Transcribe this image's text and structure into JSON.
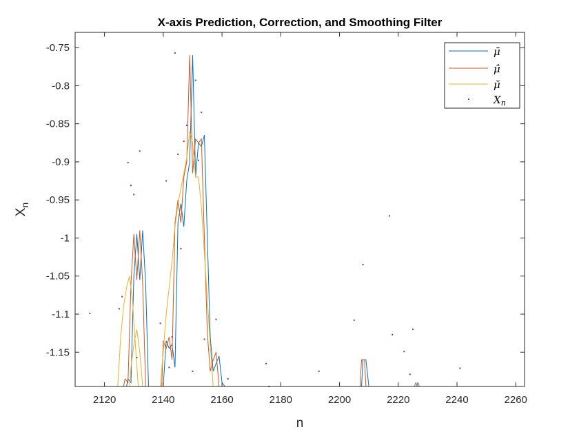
{
  "chart_data": {
    "type": "line",
    "title": "X-axis Prediction, Correction, and Smoothing Filter",
    "xlabel": "n",
    "ylabel": "X_n",
    "ylabel_main": "X",
    "ylabel_sub": "n",
    "xlim": [
      2110,
      2263
    ],
    "ylim": [
      -1.195,
      -0.73
    ],
    "xticks": [
      2120,
      2140,
      2160,
      2180,
      2200,
      2220,
      2240,
      2260
    ],
    "yticks": [
      -0.75,
      -0.8,
      -0.85,
      -0.9,
      -0.95,
      -1,
      -1.05,
      -1.1,
      -1.15
    ],
    "grid": false,
    "legend_position": "top-right",
    "series": [
      {
        "name": "μ̄",
        "style": "line",
        "color": "#0072BD",
        "points": [
          [
            2127.5,
            -1.195
          ],
          [
            2128,
            -1.185
          ],
          [
            2129,
            -1.19
          ],
          [
            2130,
            -1.05
          ],
          [
            2131,
            -0.995
          ],
          [
            2132,
            -1.055
          ],
          [
            2133,
            -0.99
          ],
          [
            2134,
            -1.06
          ],
          [
            2135,
            -1.195
          ],
          [
            2140,
            -1.195
          ],
          [
            2141,
            -1.135
          ],
          [
            2142,
            -1.145
          ],
          [
            2143,
            -1.14
          ],
          [
            2144,
            -1.17
          ],
          [
            2145,
            -0.98
          ],
          [
            2146,
            -0.955
          ],
          [
            2147,
            -0.985
          ],
          [
            2148,
            -0.925
          ],
          [
            2149,
            -0.9
          ],
          [
            2150,
            -0.76
          ],
          [
            2151,
            -0.92
          ],
          [
            2152,
            -0.875
          ],
          [
            2153,
            -0.88
          ],
          [
            2154,
            -0.865
          ],
          [
            2155,
            -1.0
          ],
          [
            2156,
            -1.13
          ],
          [
            2157,
            -1.175
          ],
          [
            2158,
            -1.165
          ],
          [
            2159,
            -1.155
          ],
          [
            2160,
            -1.19
          ],
          [
            2161,
            -1.195
          ],
          [
            2207.5,
            -1.195
          ],
          [
            2208,
            -1.16
          ],
          [
            2209,
            -1.16
          ],
          [
            2210,
            -1.195
          ],
          [
            2226.2,
            -1.195
          ],
          [
            2226.7,
            -1.19
          ],
          [
            2227.2,
            -1.195
          ]
        ]
      },
      {
        "name": "μ̂",
        "style": "line",
        "color": "#D95319",
        "points": [
          [
            2126.5,
            -1.195
          ],
          [
            2127,
            -1.185
          ],
          [
            2128,
            -1.19
          ],
          [
            2129,
            -1.06
          ],
          [
            2130,
            -0.995
          ],
          [
            2131,
            -1.055
          ],
          [
            2132,
            -0.99
          ],
          [
            2133,
            -1.06
          ],
          [
            2134,
            -1.195
          ],
          [
            2139.5,
            -1.195
          ],
          [
            2140,
            -1.135
          ],
          [
            2141,
            -1.145
          ],
          [
            2142,
            -1.13
          ],
          [
            2143,
            -1.16
          ],
          [
            2144,
            -0.98
          ],
          [
            2145,
            -0.95
          ],
          [
            2146,
            -0.98
          ],
          [
            2147,
            -0.92
          ],
          [
            2148,
            -0.9
          ],
          [
            2149,
            -0.76
          ],
          [
            2150,
            -0.915
          ],
          [
            2151,
            -0.87
          ],
          [
            2152,
            -0.875
          ],
          [
            2153,
            -0.87
          ],
          [
            2154,
            -1.0
          ],
          [
            2155,
            -1.125
          ],
          [
            2156,
            -1.175
          ],
          [
            2157,
            -1.16
          ],
          [
            2158,
            -1.15
          ],
          [
            2159,
            -1.195
          ],
          [
            2207,
            -1.195
          ],
          [
            2207.5,
            -1.16
          ],
          [
            2208.5,
            -1.16
          ],
          [
            2209,
            -1.195
          ],
          [
            2225.5,
            -1.195
          ],
          [
            2226,
            -1.19
          ],
          [
            2226.5,
            -1.195
          ]
        ]
      },
      {
        "name": "μ̆",
        "style": "line",
        "color": "#EDB120",
        "points": [
          [
            2124.5,
            -1.195
          ],
          [
            2125.5,
            -1.13
          ],
          [
            2126.5,
            -1.09
          ],
          [
            2127.5,
            -1.065
          ],
          [
            2128.5,
            -1.05
          ],
          [
            2129.5,
            -1.08
          ],
          [
            2130.5,
            -1.14
          ],
          [
            2131.5,
            -1.195
          ],
          [
            2139,
            -1.195
          ],
          [
            2140,
            -1.15
          ],
          [
            2141,
            -1.1
          ],
          [
            2142,
            -1.065
          ],
          [
            2143,
            -1.03
          ],
          [
            2144,
            -0.985
          ],
          [
            2145,
            -0.955
          ],
          [
            2146,
            -0.935
          ],
          [
            2147,
            -0.915
          ],
          [
            2148,
            -0.895
          ],
          [
            2149,
            -0.86
          ],
          [
            2150,
            -0.875
          ],
          [
            2151,
            -0.92
          ],
          [
            2152,
            -0.92
          ],
          [
            2153,
            -0.96
          ],
          [
            2154,
            -1.02
          ],
          [
            2155,
            -1.08
          ],
          [
            2156,
            -1.14
          ],
          [
            2157,
            -1.195
          ],
          [
            2128.5,
            -1.195
          ],
          [
            2129,
            -1.17
          ],
          [
            2130,
            -1.14
          ],
          [
            2131,
            -1.12
          ],
          [
            2132,
            -1.15
          ],
          [
            2133,
            -1.195
          ]
        ]
      },
      {
        "name": "X_n",
        "style": "points",
        "color": "#7E2F8E",
        "points": [
          [
            2115,
            -1.099
          ],
          [
            2125,
            -1.093
          ],
          [
            2126,
            -1.077
          ],
          [
            2128,
            -0.901
          ],
          [
            2129,
            -0.931
          ],
          [
            2130,
            -0.943
          ],
          [
            2131,
            -1.157
          ],
          [
            2132,
            -0.886
          ],
          [
            2139,
            -1.112
          ],
          [
            2141,
            -0.925
          ],
          [
            2142,
            -1.17
          ],
          [
            2143,
            -1.13
          ],
          [
            2144,
            -0.757
          ],
          [
            2145,
            -0.89
          ],
          [
            2146,
            -1.014
          ],
          [
            2147,
            -0.873
          ],
          [
            2148,
            -0.852
          ],
          [
            2150,
            -1.175
          ],
          [
            2151,
            -0.793
          ],
          [
            2152,
            -0.898
          ],
          [
            2153,
            -0.835
          ],
          [
            2154,
            -1.133
          ],
          [
            2158,
            -1.107
          ],
          [
            2162,
            -1.185
          ],
          [
            2175,
            -1.165
          ],
          [
            2176,
            -1.195
          ],
          [
            2193,
            -1.175
          ],
          [
            2205,
            -1.108
          ],
          [
            2208,
            -1.035
          ],
          [
            2217,
            -0.971
          ],
          [
            2218,
            -1.127
          ],
          [
            2222,
            -1.149
          ],
          [
            2224,
            -1.179
          ],
          [
            2225,
            -1.12
          ],
          [
            2241,
            -1.171
          ]
        ]
      }
    ]
  },
  "legend": {
    "items": [
      {
        "label": "μ̄",
        "color": "#0072BD",
        "kind": "line"
      },
      {
        "label": "μ̂",
        "color": "#D95319",
        "kind": "line"
      },
      {
        "label": "μ̆",
        "color": "#EDB120",
        "kind": "line"
      },
      {
        "label": "X",
        "sub": "n",
        "color": "#7E2F8E",
        "kind": "marker"
      }
    ]
  }
}
